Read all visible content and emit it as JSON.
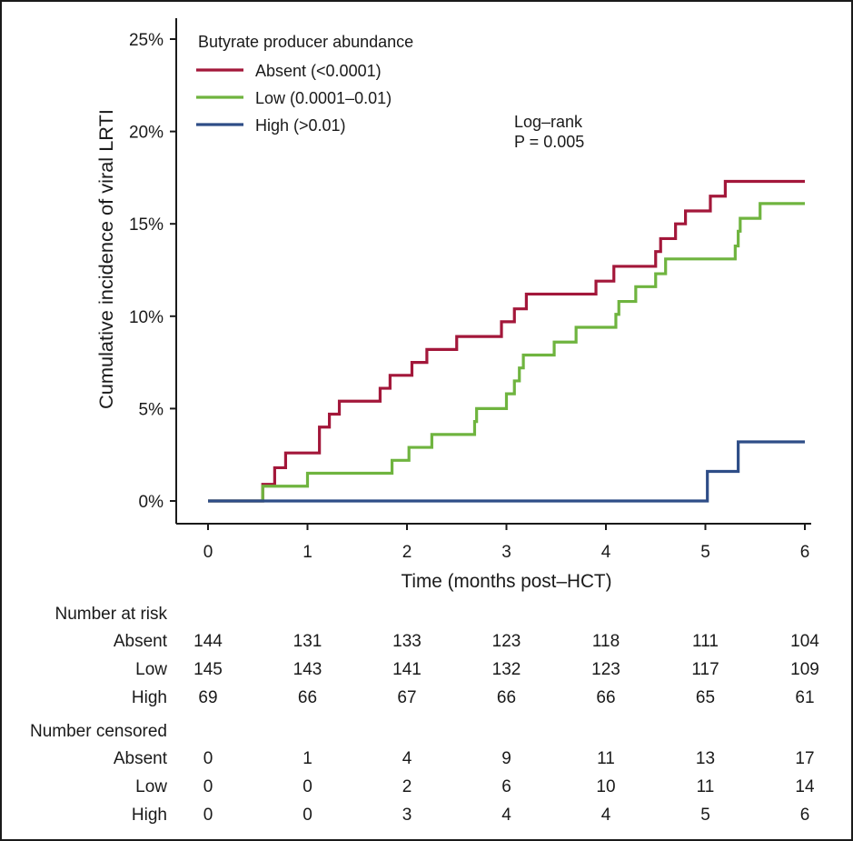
{
  "chart_data": {
    "type": "line",
    "title": "",
    "xlabel": "Time (months post–HCT)",
    "ylabel": "Cumulative incidence of viral LRTI",
    "xlim": [
      0,
      6
    ],
    "ylim": [
      0,
      25
    ],
    "x_ticks": [
      "0",
      "1",
      "2",
      "3",
      "4",
      "5",
      "6"
    ],
    "y_ticks": [
      "0%",
      "5%",
      "10%",
      "15%",
      "20%",
      "25%"
    ],
    "legend": {
      "title": "Butyrate producer abundance",
      "placement": "top-left",
      "entries": [
        "Absent (<0.0001)",
        "Low (0.0001–0.01)",
        "High (>0.01)"
      ]
    },
    "annotation": [
      "Log–rank",
      "P = 0.005"
    ],
    "series": [
      {
        "name": "Absent (<0.0001)",
        "color": "#a3173a",
        "steps": [
          [
            0,
            0
          ],
          [
            0.55,
            0.9
          ],
          [
            0.67,
            1.8
          ],
          [
            0.78,
            2.6
          ],
          [
            1.12,
            4.0
          ],
          [
            1.22,
            4.7
          ],
          [
            1.32,
            5.4
          ],
          [
            1.73,
            6.1
          ],
          [
            1.83,
            6.8
          ],
          [
            2.05,
            7.5
          ],
          [
            2.2,
            8.2
          ],
          [
            2.5,
            8.9
          ],
          [
            2.95,
            9.7
          ],
          [
            3.08,
            10.4
          ],
          [
            3.2,
            11.2
          ],
          [
            3.9,
            11.9
          ],
          [
            4.08,
            12.7
          ],
          [
            4.5,
            13.5
          ],
          [
            4.55,
            14.2
          ],
          [
            4.7,
            15.0
          ],
          [
            4.8,
            15.7
          ],
          [
            5.05,
            16.5
          ],
          [
            5.2,
            17.3
          ],
          [
            6.0,
            17.3
          ]
        ]
      },
      {
        "name": "Low (0.0001–0.01)",
        "color": "#6fb43f",
        "steps": [
          [
            0,
            0
          ],
          [
            0.55,
            0.8
          ],
          [
            1.0,
            1.5
          ],
          [
            1.85,
            2.2
          ],
          [
            2.02,
            2.9
          ],
          [
            2.25,
            3.6
          ],
          [
            2.68,
            4.3
          ],
          [
            2.7,
            5.0
          ],
          [
            3.0,
            5.8
          ],
          [
            3.08,
            6.5
          ],
          [
            3.13,
            7.2
          ],
          [
            3.17,
            7.9
          ],
          [
            3.48,
            8.6
          ],
          [
            3.7,
            9.4
          ],
          [
            4.1,
            10.1
          ],
          [
            4.13,
            10.8
          ],
          [
            4.3,
            11.6
          ],
          [
            4.5,
            12.3
          ],
          [
            4.6,
            13.1
          ],
          [
            5.3,
            13.8
          ],
          [
            5.33,
            14.6
          ],
          [
            5.35,
            15.3
          ],
          [
            5.55,
            16.1
          ],
          [
            6.0,
            16.1
          ]
        ]
      },
      {
        "name": "High (>0.01)",
        "color": "#2e4d87",
        "steps": [
          [
            0,
            0
          ],
          [
            5.02,
            1.6
          ],
          [
            5.33,
            3.2
          ],
          [
            6.0,
            3.2
          ]
        ]
      }
    ]
  },
  "risk_table": {
    "title": "Number at risk",
    "rows": [
      {
        "label": "Absent",
        "values": [
          "144",
          "131",
          "133",
          "123",
          "118",
          "111",
          "104"
        ]
      },
      {
        "label": "Low",
        "values": [
          "145",
          "143",
          "141",
          "132",
          "123",
          "117",
          "109"
        ]
      },
      {
        "label": "High",
        "values": [
          "69",
          "66",
          "67",
          "66",
          "66",
          "65",
          "61"
        ]
      }
    ]
  },
  "censored_table": {
    "title": "Number censored",
    "rows": [
      {
        "label": "Absent",
        "values": [
          "0",
          "1",
          "4",
          "9",
          "11",
          "13",
          "17"
        ]
      },
      {
        "label": "Low",
        "values": [
          "0",
          "0",
          "2",
          "6",
          "10",
          "11",
          "14"
        ]
      },
      {
        "label": "High",
        "values": [
          "0",
          "0",
          "3",
          "4",
          "4",
          "5",
          "6"
        ]
      }
    ]
  }
}
